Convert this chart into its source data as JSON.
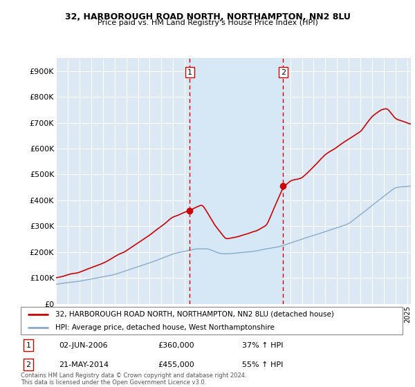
{
  "title1": "32, HARBOROUGH ROAD NORTH, NORTHAMPTON, NN2 8LU",
  "title2": "Price paid vs. HM Land Registry's House Price Index (HPI)",
  "background_color": "#dce9f5",
  "plot_bg": "#dce9f5",
  "ylabel_ticks": [
    "£0",
    "£100K",
    "£200K",
    "£300K",
    "£400K",
    "£500K",
    "£600K",
    "£700K",
    "£800K",
    "£900K"
  ],
  "ytick_vals": [
    0,
    100000,
    200000,
    300000,
    400000,
    500000,
    600000,
    700000,
    800000,
    900000
  ],
  "ylim": [
    0,
    950000
  ],
  "xlim_start": 1995.0,
  "xlim_end": 2025.3,
  "sale1_x": 2006.42,
  "sale1_y": 360000,
  "sale2_x": 2014.39,
  "sale2_y": 455000,
  "legend_line1": "32, HARBOROUGH ROAD NORTH, NORTHAMPTON, NN2 8LU (detached house)",
  "legend_line2": "HPI: Average price, detached house, West Northamptonshire",
  "ann1_date": "02-JUN-2006",
  "ann1_price": "£360,000",
  "ann1_hpi": "37% ↑ HPI",
  "ann2_date": "21-MAY-2014",
  "ann2_price": "£455,000",
  "ann2_hpi": "55% ↑ HPI",
  "footer": "Contains HM Land Registry data © Crown copyright and database right 2024.\nThis data is licensed under the Open Government Licence v3.0.",
  "line_red": "#cc0000",
  "line_blue": "#88aacc",
  "vline_color": "#cc0000",
  "highlight_color": "#d6e8f5"
}
